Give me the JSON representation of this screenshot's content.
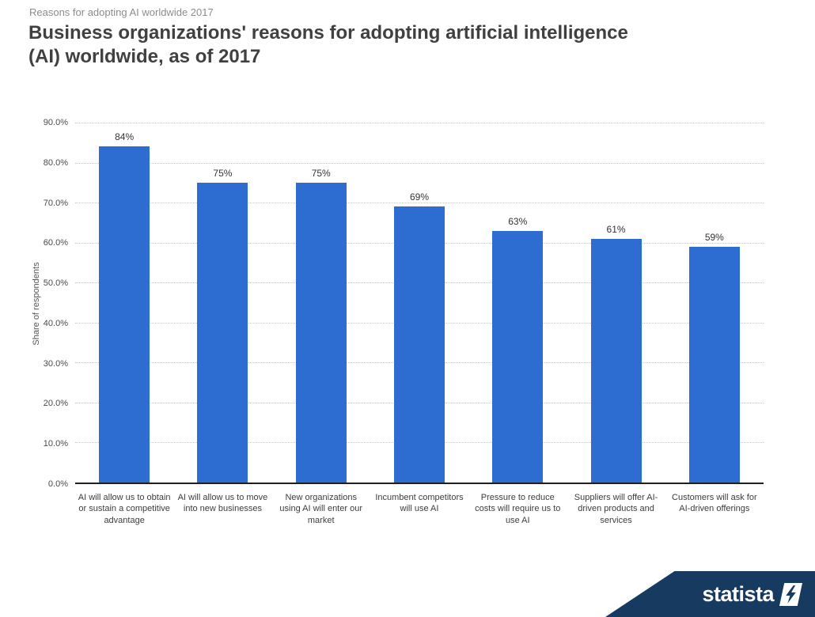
{
  "header": {
    "eyebrow": "Reasons for adopting AI worldwide 2017",
    "title": "Business organizations' reasons for adopting artificial intelligence (AI) worldwide, as of 2017"
  },
  "chart_data": {
    "type": "bar",
    "title": "Business organizations' reasons for adopting artificial intelligence (AI) worldwide, as of 2017",
    "categories": [
      "AI will allow us to obtain or sustain a competitive advantage",
      "AI will allow us to move into new businesses",
      "New organizations using AI will enter our market",
      "Incumbent competitors will use AI",
      "Pressure to reduce costs will require us to use AI",
      "Suppliers will offer AI-driven products and services",
      "Customers will ask for AI-driven offerings"
    ],
    "values": [
      84,
      75,
      75,
      69,
      63,
      61,
      59
    ],
    "value_labels": [
      "84%",
      "75%",
      "75%",
      "69%",
      "63%",
      "61%",
      "59%"
    ],
    "xlabel": "",
    "ylabel": "Share of respondents",
    "ylim": [
      0,
      90
    ],
    "ytick_step": 10,
    "ytick_labels": [
      "0.0%",
      "10.0%",
      "20.0%",
      "30.0%",
      "40.0%",
      "50.0%",
      "60.0%",
      "70.0%",
      "80.0%",
      "90.0%"
    ],
    "grid": "horizontal-dotted",
    "legend": "none",
    "bar_color": "#2d6dd2"
  },
  "footer": {
    "brand": "statista",
    "banner_color": "#173a60"
  }
}
